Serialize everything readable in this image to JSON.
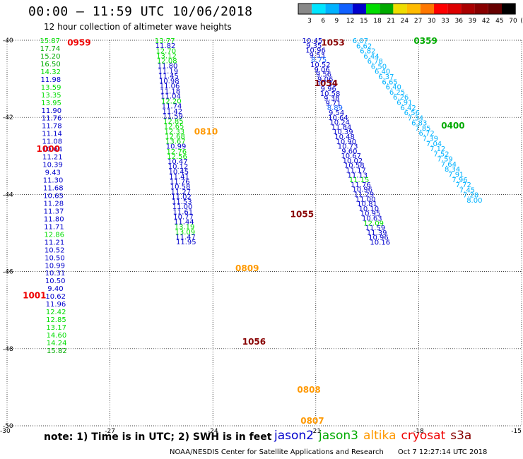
{
  "title": "00:00 – 11:59 UTC 10/06/2018",
  "subtitle": "12 hour collection of altimeter wave heights",
  "note": "note:  1) Time is in UTC; 2) SWH is in feet",
  "satellites": [
    {
      "name": "jason2",
      "color": "#0000cc"
    },
    {
      "name": "jason3",
      "color": "#00aa00"
    },
    {
      "name": "altika",
      "color": "#ff9900"
    },
    {
      "name": "cryosat",
      "color": "#ee0000"
    },
    {
      "name": "s3a",
      "color": "#880000"
    }
  ],
  "credit": {
    "org": "NOAA/NESDIS Center for Satellite Applications and Research",
    "timestamp": "Oct  7 12:27:14 UTC 2018"
  },
  "chart_data": {
    "type": "scatter",
    "colorbar": {
      "labels": [
        "3",
        "6",
        "9",
        "12",
        "15",
        "18",
        "21",
        "24",
        "27",
        "30",
        "33",
        "36",
        "39",
        "42",
        "45",
        "70",
        "(ft)"
      ],
      "colors": [
        "#888888",
        "#00e5ff",
        "#00b2ff",
        "#1060ff",
        "#0000cc",
        "#00dd00",
        "#00aa00",
        "#eedd00",
        "#ffbb00",
        "#ff7700",
        "#ff0000",
        "#dd0000",
        "#aa0000",
        "#880000",
        "#660000",
        "#000000"
      ]
    },
    "x_ticks": [
      "-30",
      "-27",
      "-24",
      "-21",
      "-18",
      "-15"
    ],
    "y_ticks": [
      "-40",
      "-42",
      "-44",
      "-46",
      "-48",
      "-50"
    ],
    "xlim": [
      -30,
      -15
    ],
    "ylim": [
      -50,
      -40
    ],
    "time_labels": [
      {
        "text": "0959",
        "lon": -27.9,
        "lat": -40.05,
        "color": "#ee0000"
      },
      {
        "text": "1000",
        "lon": -28.8,
        "lat": -42.8,
        "color": "#ee0000"
      },
      {
        "text": "1001",
        "lon": -29.2,
        "lat": -46.6,
        "color": "#ee0000"
      },
      {
        "text": "0810",
        "lon": -24.2,
        "lat": -42.35,
        "color": "#ff9900"
      },
      {
        "text": "0809",
        "lon": -23.0,
        "lat": -45.9,
        "color": "#ff9900"
      },
      {
        "text": "0808",
        "lon": -21.2,
        "lat": -49.05,
        "color": "#ff9900"
      },
      {
        "text": "0807",
        "lon": -21.1,
        "lat": -49.85,
        "color": "#ff9900"
      },
      {
        "text": "1053",
        "lon": -20.5,
        "lat": -40.05,
        "color": "#880000"
      },
      {
        "text": "1054",
        "lon": -20.7,
        "lat": -41.1,
        "color": "#880000"
      },
      {
        "text": "1055",
        "lon": -21.4,
        "lat": -44.5,
        "color": "#880000"
      },
      {
        "text": "1056",
        "lon": -22.8,
        "lat": -47.8,
        "color": "#880000"
      },
      {
        "text": "0359",
        "lon": -17.8,
        "lat": -40.0,
        "color": "#00aa00"
      },
      {
        "text": "0400",
        "lon": -17.0,
        "lat": -42.2,
        "color": "#00aa00"
      }
    ],
    "tracks": [
      {
        "name": "track-cryosat",
        "lat_start": -40.0,
        "lat_step": 0.201,
        "lon_start": -28.75,
        "lon_step": 0.005,
        "values": [
          "15.87",
          "17.74",
          "15.20",
          "16.50",
          "14.32",
          "11.98",
          "13.59",
          "13.35",
          "13.95",
          "11.90",
          "11.76",
          "11.78",
          "11.14",
          "11.08",
          "10.64",
          "11.21",
          "10.39",
          "9.43",
          "11.30",
          "11.68",
          "10.65",
          "11.28",
          "11.37",
          "11.80",
          "11.71",
          "12.86",
          "11.21",
          "10.52",
          "10.50",
          "10.99",
          "10.31",
          "10.50",
          "9.40",
          "10.62",
          "11.96",
          "12.42",
          "12.85",
          "13.17",
          "14.60",
          "14.24",
          "15.82"
        ],
        "colors": [
          "#00dd00",
          "#00aa00",
          "#00aa00",
          "#00aa00",
          "#00dd00",
          "#0000cc",
          "#00dd00",
          "#00dd00",
          "#00dd00",
          "#0000cc",
          "#0000cc",
          "#0000cc",
          "#0000cc",
          "#0000cc",
          "#0000cc",
          "#0000cc",
          "#0000cc",
          "#0000cc",
          "#0000cc",
          "#0000cc",
          "#0000cc",
          "#0000cc",
          "#0000cc",
          "#0000cc",
          "#0000cc",
          "#00dd00",
          "#0000cc",
          "#0000cc",
          "#0000cc",
          "#0000cc",
          "#0000cc",
          "#0000cc",
          "#0000cc",
          "#0000cc",
          "#0000cc",
          "#00dd00",
          "#00dd00",
          "#00dd00",
          "#00dd00",
          "#00dd00",
          "#00aa00"
        ]
      },
      {
        "name": "track-altika",
        "lat_start": -40.0,
        "lat_step": 0.1305,
        "lon_start": -25.4,
        "lon_step": 0.0155,
        "values": [
          "13.77",
          "11.82",
          "12.70",
          "13.12",
          "12.08",
          "11.80",
          "11.19",
          "11.45",
          "10.98",
          "11.06",
          "11.18",
          "11.04",
          "12.20",
          "11.74",
          "11.42",
          "11.59",
          "12.85",
          "12.65",
          "12.33",
          "12.68",
          "13.67",
          "10.99",
          "12.76",
          "12.56",
          "10.47",
          "10.12",
          "10.45",
          "11.41",
          "11.76",
          "10.58",
          "11.27",
          "11.02",
          "11.53",
          "11.00",
          "11.61",
          "10.77",
          "11.44",
          "13.19",
          "13.09",
          "11.47",
          "11.95"
        ],
        "colors": [
          "#00dd00",
          "#0000cc",
          "#00dd00",
          "#00dd00",
          "#00dd00",
          "#0000cc",
          "#0000cc",
          "#0000cc",
          "#0000cc",
          "#0000cc",
          "#0000cc",
          "#0000cc",
          "#00dd00",
          "#0000cc",
          "#0000cc",
          "#0000cc",
          "#00dd00",
          "#00dd00",
          "#00dd00",
          "#00dd00",
          "#00dd00",
          "#0000cc",
          "#00dd00",
          "#00dd00",
          "#0000cc",
          "#0000cc",
          "#0000cc",
          "#0000cc",
          "#0000cc",
          "#0000cc",
          "#0000cc",
          "#0000cc",
          "#0000cc",
          "#0000cc",
          "#0000cc",
          "#0000cc",
          "#0000cc",
          "#00dd00",
          "#00dd00",
          "#0000cc",
          "#0000cc"
        ]
      },
      {
        "name": "track-s3a-down",
        "lat_start": -40.0,
        "lat_step": 0.1245,
        "lon_start": -21.1,
        "lon_step": 0.047,
        "values": [
          "10.45",
          "9.35",
          "10.96",
          "9.53",
          "8.75",
          "10.52",
          "9.06",
          "9.56",
          "9.06",
          "10.39",
          "9.96",
          "10.58",
          "9.38",
          "9.71",
          "8.89",
          "9.54",
          "10.64",
          "10.24",
          "11.84",
          "10.39",
          "10.48",
          "10.90",
          "10.73",
          "9.60",
          "10.67",
          "10.02",
          "10.58",
          "11.17",
          "11.13",
          "11.15",
          "11.76",
          "10.96",
          "11.29",
          "11.00",
          "10.81",
          "10.10",
          "10.95",
          "10.63",
          "12.09",
          "11.59",
          "11.39",
          "10.96",
          "10.16"
        ],
        "colors": [
          "#0000cc",
          "#0000cc",
          "#0000cc",
          "#0000cc",
          "#1060ff",
          "#0000cc",
          "#0000cc",
          "#0000cc",
          "#0000cc",
          "#0000cc",
          "#0000cc",
          "#0000cc",
          "#0000cc",
          "#0000cc",
          "#1060ff",
          "#0000cc",
          "#0000cc",
          "#0000cc",
          "#0000cc",
          "#0000cc",
          "#0000cc",
          "#0000cc",
          "#0000cc",
          "#0000cc",
          "#0000cc",
          "#0000cc",
          "#0000cc",
          "#0000cc",
          "#0000cc",
          "#00dd00",
          "#0000cc",
          "#0000cc",
          "#0000cc",
          "#0000cc",
          "#0000cc",
          "#0000cc",
          "#0000cc",
          "#0000cc",
          "#00dd00",
          "#0000cc",
          "#0000cc",
          "#0000cc",
          "#0000cc"
        ]
      },
      {
        "name": "track-jason3-diag",
        "lat_start": -40.0,
        "lat_step": 0.1335,
        "lon_start": -19.7,
        "lon_step": 0.1073,
        "values": [
          "6.07",
          "6.62",
          "6.82",
          "6.44",
          "6.78",
          "6.50",
          "6.40",
          "6.37",
          "6.65",
          "6.40",
          "6.25",
          "6.26",
          "6.91",
          "6.42",
          "6.56",
          "7.34",
          "6.83",
          "7.85",
          "6.72",
          "7.39",
          "7.04",
          "7.12",
          "7.52",
          "7.59",
          "7.64",
          "8.34",
          "7.91",
          "7.96",
          "7.72",
          "7.45",
          "7.28",
          "8.00"
        ],
        "colors": [
          "#00b2ff",
          "#00b2ff",
          "#00b2ff",
          "#00b2ff",
          "#00b2ff",
          "#00b2ff",
          "#00b2ff",
          "#00b2ff",
          "#00b2ff",
          "#00b2ff",
          "#00b2ff",
          "#00b2ff",
          "#00b2ff",
          "#00b2ff",
          "#00b2ff",
          "#00b2ff",
          "#00b2ff",
          "#00b2ff",
          "#00b2ff",
          "#00b2ff",
          "#00b2ff",
          "#00b2ff",
          "#00b2ff",
          "#00b2ff",
          "#00b2ff",
          "#00b2ff",
          "#00b2ff",
          "#00b2ff",
          "#00b2ff",
          "#00b2ff",
          "#00b2ff",
          "#00b2ff"
        ]
      }
    ]
  }
}
